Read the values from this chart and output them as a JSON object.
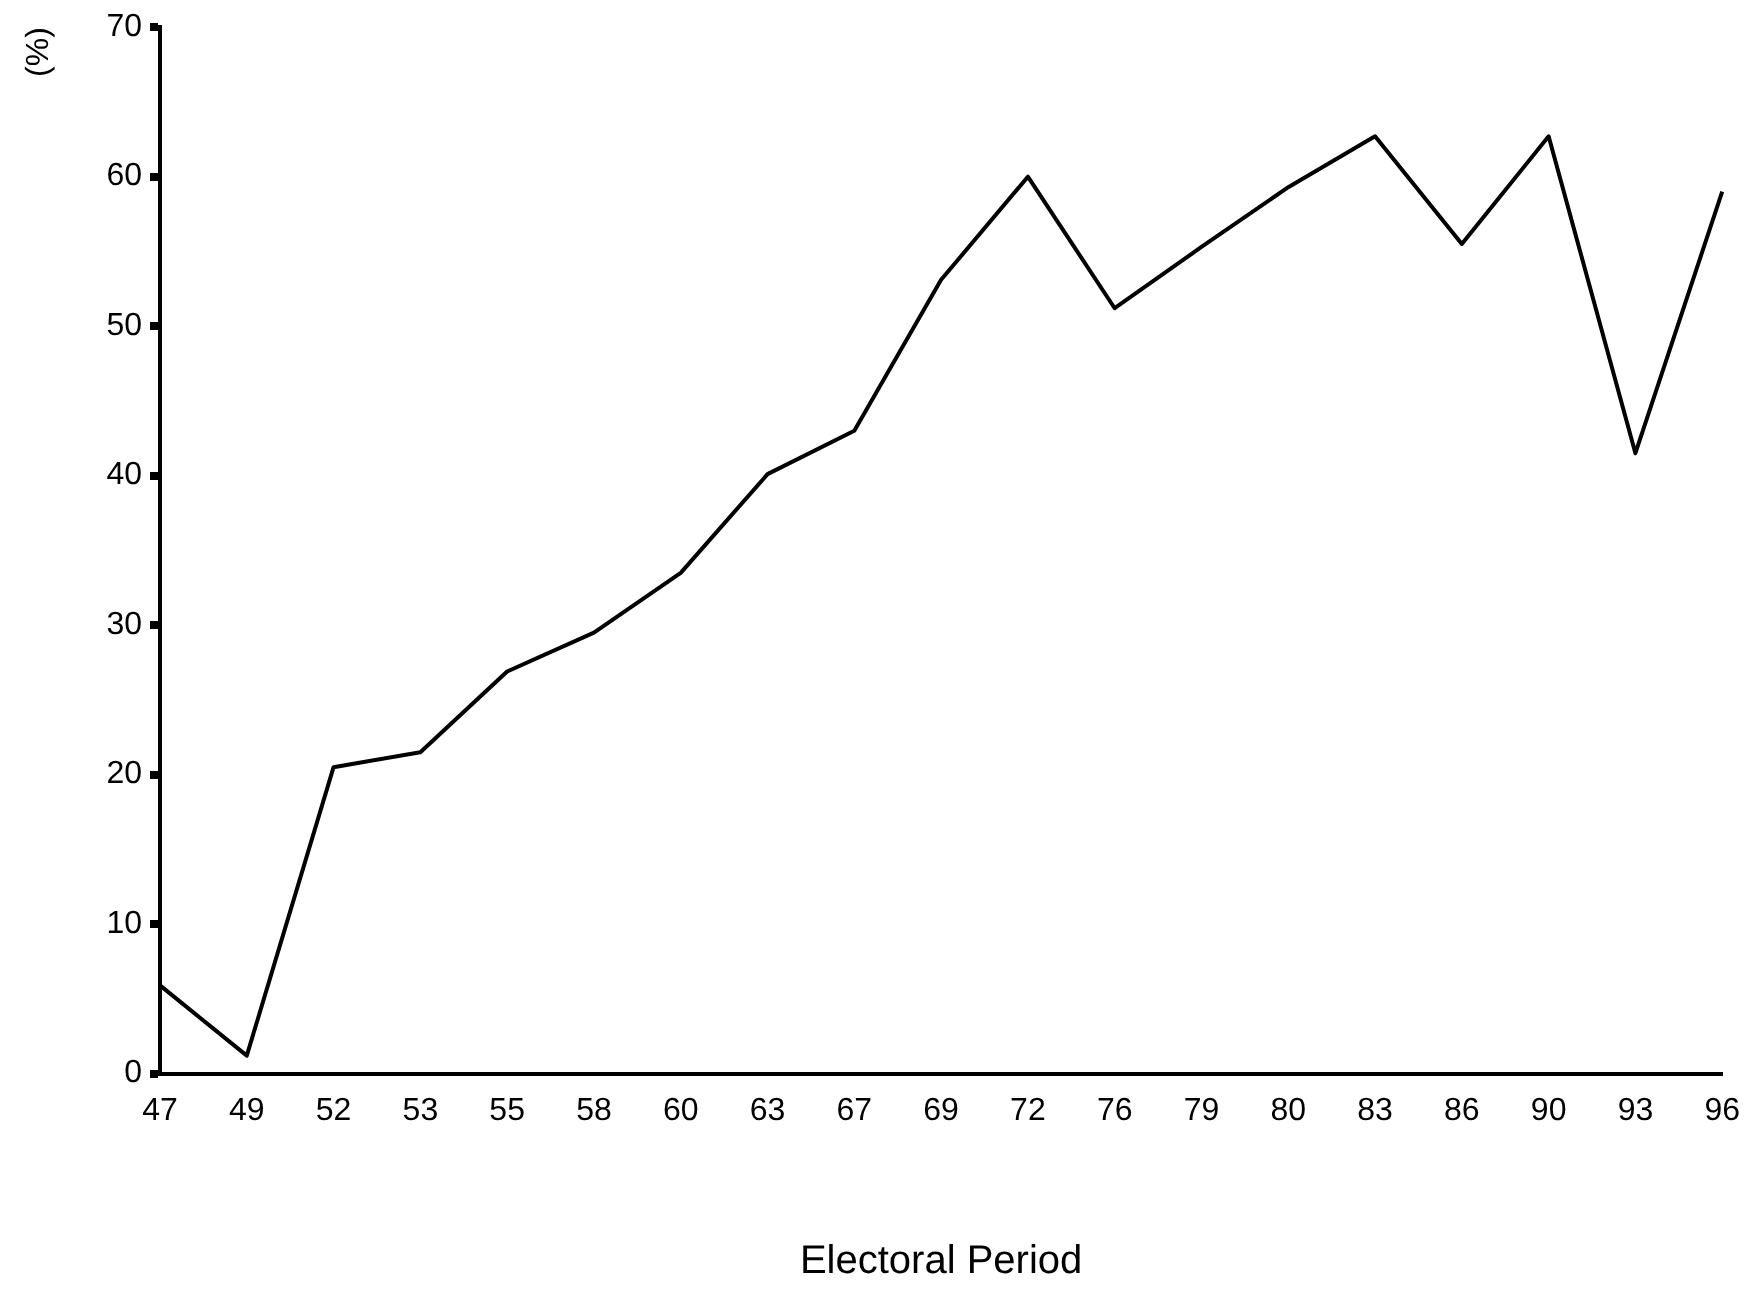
{
  "chart_data": {
    "type": "line",
    "xlabel": "Electoral Period",
    "ylabel": "(%)",
    "categories": [
      "47",
      "49",
      "52",
      "53",
      "55",
      "58",
      "60",
      "63",
      "67",
      "69",
      "72",
      "76",
      "79",
      "80",
      "83",
      "86",
      "90",
      "93",
      "96"
    ],
    "series": [
      {
        "color": "#000000",
        "values": [
          5.9,
          1.2,
          20.5,
          21.5,
          26.9,
          29.5,
          33.5,
          40.1,
          43.0,
          53.1,
          60.0,
          51.2,
          55.3,
          59.3,
          62.7,
          55.5,
          62.7,
          41.5,
          59.0
        ]
      }
    ],
    "ylim": [
      0,
      70
    ],
    "yticks": [
      0,
      10,
      20,
      30,
      40,
      50,
      60,
      70
    ],
    "grid": false,
    "legend": false,
    "marker": "none",
    "line_style": "solid"
  }
}
